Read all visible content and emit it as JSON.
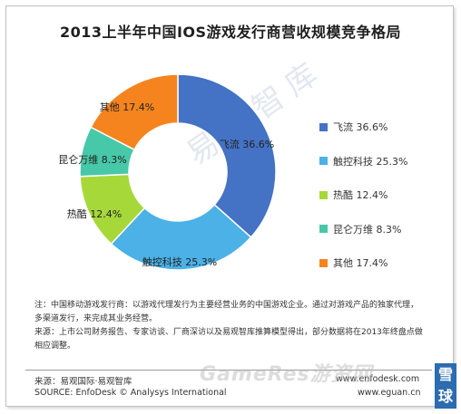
{
  "chart_data": {
    "type": "pie",
    "title": "2013上半年中国IOS游戏发行商营收规模竞争格局",
    "series": [
      {
        "name": "飞流",
        "value": 36.6,
        "color": "#4472c4",
        "label": "飞流 36.6%"
      },
      {
        "name": "触控科技",
        "value": 25.3,
        "color": "#4bb1e6",
        "label": "触控科技 25.3%"
      },
      {
        "name": "热酷",
        "value": 12.4,
        "color": "#a6d83a",
        "label": "热酷 12.4%"
      },
      {
        "name": "昆仑万维",
        "value": 8.3,
        "color": "#47c8a8",
        "label": "昆仑万维 8.3%"
      },
      {
        "name": "其他",
        "value": 17.4,
        "color": "#f5841f",
        "label": "其他 17.4%"
      }
    ],
    "legend_position": "right"
  },
  "watermark": "易观智库",
  "notes": {
    "line1": "注：中国移动游戏发行商：以游戏代理发行为主要经营业务的中国游戏企业。通过对游戏产品的独家代理，多渠道发行，来完成其业务经营。",
    "line2": "来源：上市公司财务报告、专家访谈、厂商深访以及易观智库推算模型得出，部分数据将在2013年终盘点做相应调整。"
  },
  "source": {
    "cn": "来源：易观国际·易观智库",
    "en": "SOURCE: EnfoDesk © Analysys International",
    "url1": "www.enfodesk.com",
    "url2": "www.eguan.cn"
  },
  "overlay": {
    "gameres": "GameRes游资网",
    "badge_top": "雪",
    "badge_bottom": "球"
  }
}
